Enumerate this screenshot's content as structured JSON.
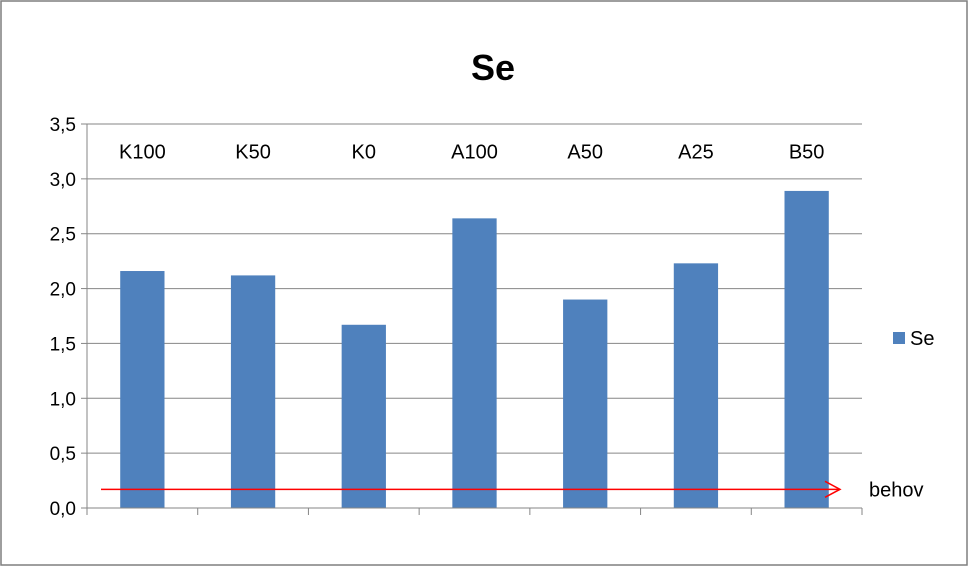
{
  "chart_data": {
    "type": "bar",
    "title": "Se",
    "xlabel": "",
    "ylabel": "",
    "categories": [
      "K100",
      "K50",
      "K0",
      "A100",
      "A50",
      "A25",
      "B50"
    ],
    "series": [
      {
        "name": "Se",
        "values": [
          2.16,
          2.12,
          1.67,
          2.64,
          1.9,
          2.23,
          2.89
        ]
      }
    ],
    "ylim": [
      0,
      3.5
    ],
    "yticks": [
      "0,0",
      "0,5",
      "1,0",
      "1,5",
      "2,0",
      "2,5",
      "3,0",
      "3,5"
    ],
    "grid": true,
    "legend_position": "right",
    "category_labels_position": "top",
    "annotation": {
      "label": "behov",
      "value": 0.17,
      "color": "#ff0000"
    },
    "bar_color": "#4f81bd"
  }
}
